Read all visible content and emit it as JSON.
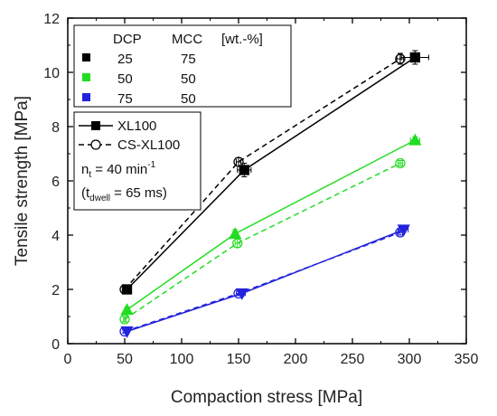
{
  "chart_data": {
    "type": "line",
    "xlabel": "Compaction stress [MPa]",
    "ylabel": "Tensile strength [MPa]",
    "xlim": [
      0,
      350
    ],
    "ylim": [
      0,
      12
    ],
    "xticks": [
      "0",
      "50",
      "100",
      "150",
      "200",
      "250",
      "300",
      "350"
    ],
    "yticks": [
      "0",
      "2",
      "4",
      "6",
      "8",
      "10",
      "12"
    ],
    "grid": false,
    "legend": {
      "placement": "top-left",
      "composition": {
        "header": {
          "col1": "DCP",
          "col2": "MCC",
          "col3": "[wt.-%]"
        },
        "rows": [
          {
            "dcp": "25",
            "mcc": "75",
            "color": "#000000"
          },
          {
            "dcp": "50",
            "mcc": "50",
            "color": "#22dd22"
          },
          {
            "dcp": "75",
            "mcc": "50",
            "color": "#2222dd"
          }
        ]
      },
      "styles": [
        {
          "label": "XL100",
          "line": "solid",
          "marker": "filled"
        },
        {
          "label": "CS-XL100",
          "line": "dashed",
          "marker": "open"
        }
      ],
      "note1": {
        "main": "n",
        "sub": "t",
        "rest": " = 40 min",
        "sup": "-1"
      },
      "note2": {
        "open": "(t",
        "sub": "dwell",
        "rest": " = 65 ms)"
      }
    },
    "series": [
      {
        "name": "XL100",
        "composition": "25/75",
        "color": "#000000",
        "line": "solid",
        "marker": "square",
        "fill": "filled",
        "x": [
          52,
          155,
          305
        ],
        "y": [
          2.0,
          6.4,
          10.55
        ],
        "xerr": [
          2,
          6,
          12
        ],
        "yerr": [
          0.15,
          0.25,
          0.25
        ]
      },
      {
        "name": "CS-XL100",
        "composition": "25/75",
        "color": "#000000",
        "line": "dashed",
        "marker": "circle",
        "fill": "open",
        "x": [
          50,
          150,
          292
        ],
        "y": [
          2.0,
          6.7,
          10.5
        ],
        "xerr": [
          1,
          2,
          3
        ],
        "yerr": [
          0.1,
          0.15,
          0.2
        ]
      },
      {
        "name": "XL100",
        "composition": "50/50",
        "color": "#22dd22",
        "line": "solid",
        "marker": "triangle",
        "fill": "filled",
        "x": [
          52,
          147,
          305
        ],
        "y": [
          1.25,
          4.05,
          7.5
        ],
        "xerr": [
          1,
          2,
          4
        ],
        "yerr": [
          0.1,
          0.15,
          0.12
        ]
      },
      {
        "name": "CS-XL100",
        "composition": "50/50",
        "color": "#22dd22",
        "line": "dashed",
        "marker": "circle",
        "fill": "open",
        "x": [
          50,
          149,
          292
        ],
        "y": [
          0.9,
          3.7,
          6.65
        ],
        "xerr": [
          1,
          2,
          2
        ],
        "yerr": [
          0.1,
          0.15,
          0.1
        ]
      },
      {
        "name": "XL100",
        "composition": "75/50",
        "color": "#2222dd",
        "line": "solid",
        "marker": "triangle-down",
        "fill": "filled",
        "x": [
          52,
          153,
          295
        ],
        "y": [
          0.45,
          1.85,
          4.2
        ],
        "xerr": [
          1,
          3,
          4
        ],
        "yerr": [
          0.05,
          0.08,
          0.1
        ]
      },
      {
        "name": "CS-XL100",
        "composition": "75/50",
        "color": "#2222dd",
        "line": "dashed",
        "marker": "circle",
        "fill": "open",
        "x": [
          50,
          150,
          292
        ],
        "y": [
          0.45,
          1.85,
          4.1
        ],
        "xerr": [
          1,
          2,
          2
        ],
        "yerr": [
          0.05,
          0.08,
          0.1
        ]
      }
    ]
  }
}
